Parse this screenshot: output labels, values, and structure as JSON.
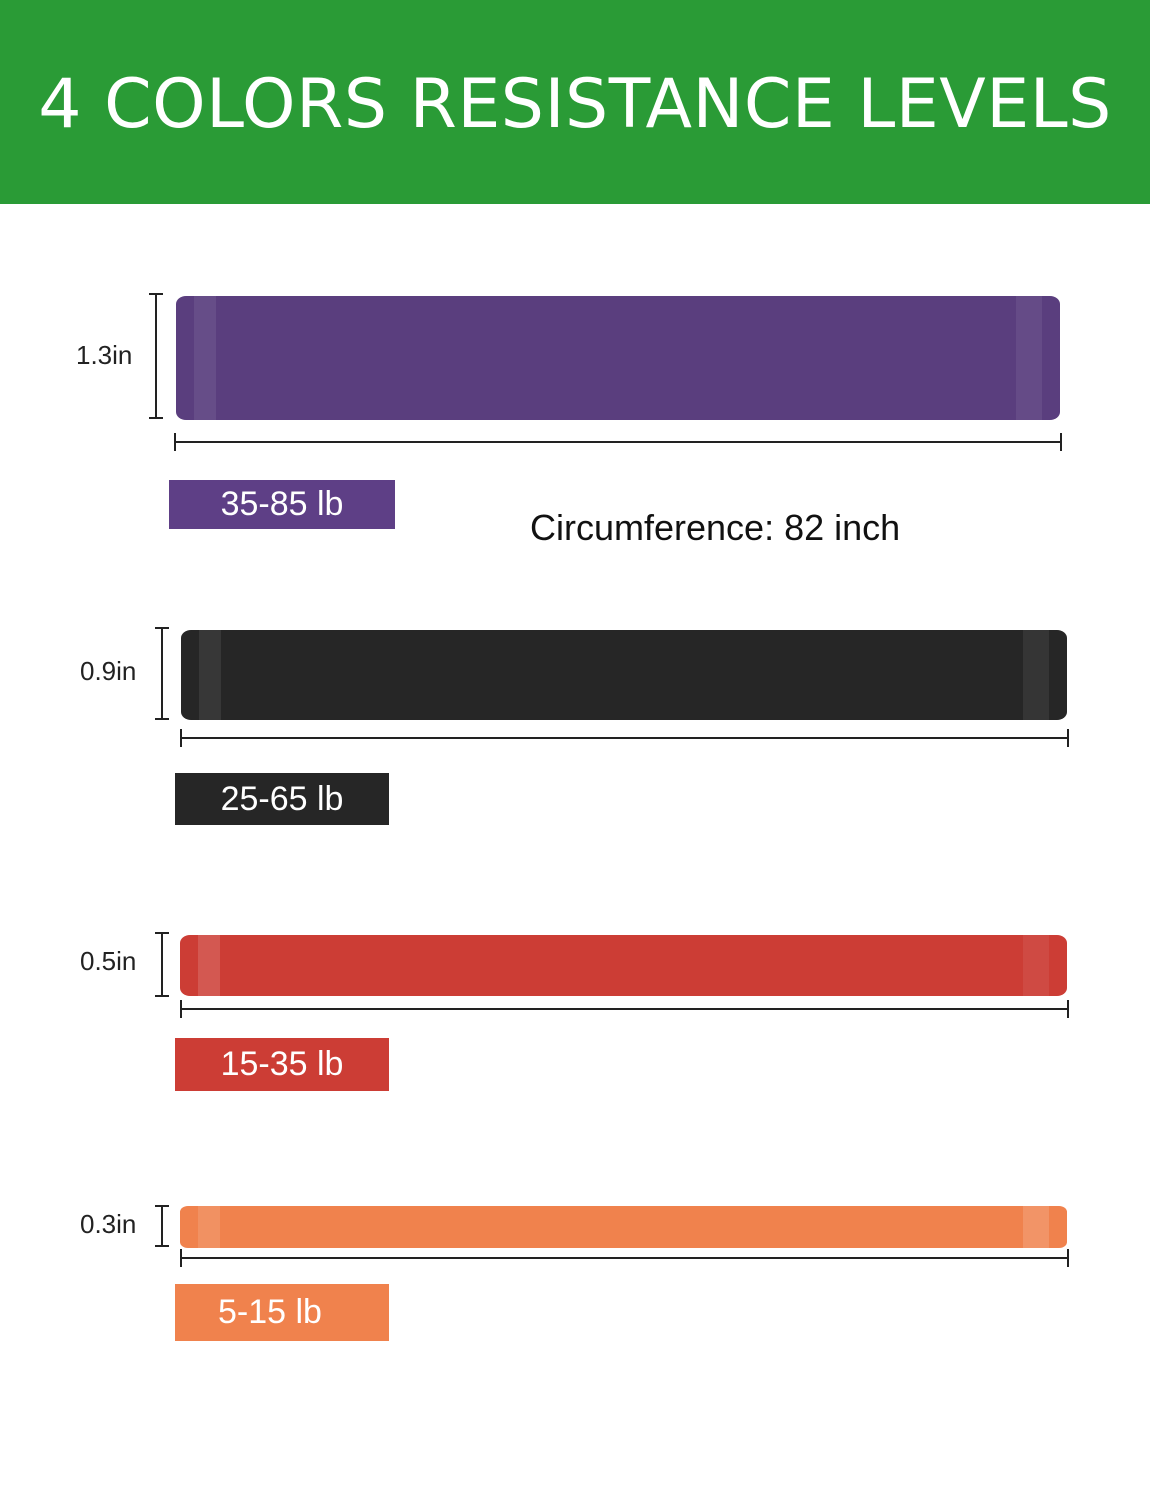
{
  "header": {
    "title": "4 COLORS RESISTANCE LEVELS",
    "background_color": "#2a9b36"
  },
  "circumference_label": "Circumference: 82 inch",
  "bands": [
    {
      "width_label": "1.3in",
      "resistance_label": "35-85 lb",
      "color": "#5a3e7e",
      "tag_color": "#5e3f86"
    },
    {
      "width_label": "0.9in",
      "resistance_label": "25-65 lb",
      "color": "#262626",
      "tag_color": "#262626"
    },
    {
      "width_label": "0.5in",
      "resistance_label": "15-35 lb",
      "color": "#cc3d35",
      "tag_color": "#cc3d35"
    },
    {
      "width_label": "0.3in",
      "resistance_label": "5-15 lb",
      "color": "#f0824d",
      "tag_color": "#f0824d"
    }
  ]
}
